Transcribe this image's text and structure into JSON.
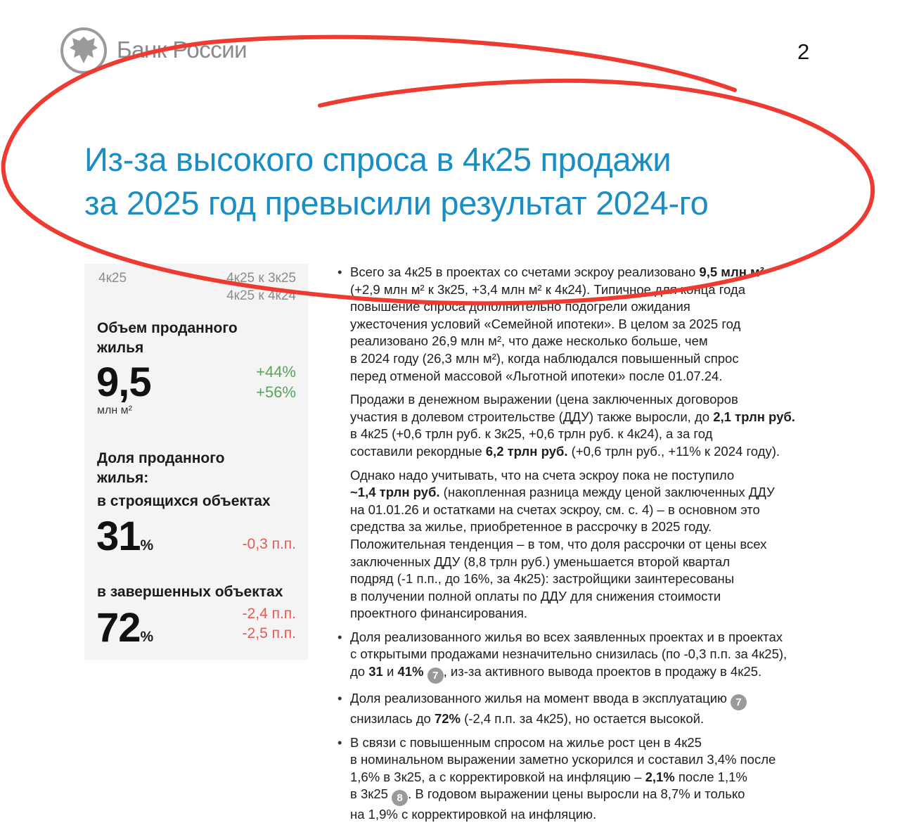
{
  "header": {
    "logo_text": "Банк России",
    "page_number": "2"
  },
  "title": [
    "Из-за высокого спроса в 4к25 продажи",
    "за 2025 год превысили результат 2024-го"
  ],
  "panel": {
    "col_current": "4к25",
    "col_qoq": "4к25 к 3к25",
    "col_yoy": "4к25 к 4к24",
    "volume": {
      "label1": "Объем проданного",
      "label2": "жилья",
      "value": "9,5",
      "unit": "млн м²",
      "qoq": "+44%",
      "yoy": "+56%"
    },
    "share_label1": "Доля проданного",
    "share_label2": "жилья:",
    "under_construction": {
      "label": "в строящихся объектах",
      "value": "31",
      "pct": "%",
      "qoq": "-0,3 п.п."
    },
    "completed": {
      "label": "в завершенных объектах",
      "value": "72",
      "pct": "%",
      "qoq": "-2,4 п.п.",
      "yoy": "-2,5 п.п."
    }
  },
  "colors": {
    "title": "#1a8ec2",
    "positive": "#58a45a",
    "negative": "#e45a52",
    "annotation": "#ee3b32"
  },
  "paragraphs": [
    {
      "bullet": true,
      "lines": [
        [
          {
            "t": "Всего за 4к25 в проектах со счетами эскроу реализовано "
          },
          {
            "t": "9,5 млн м²",
            "b": true
          }
        ],
        [
          {
            "t": "(+2,9 млн м² к 3к25, +3,4 млн м² к 4к24). Типичное для конца года"
          }
        ],
        [
          {
            "t": "повышение спроса дополнительно подогрели ожидания"
          }
        ],
        [
          {
            "t": "ужесточения условий «Семейной ипотеки». В целом за 2025 год"
          }
        ],
        [
          {
            "t": "реализовано 26,9 млн м², что даже несколько больше, чем"
          }
        ],
        [
          {
            "t": "в 2024 году (26,3 млн м²), когда наблюдался повышенный спрос"
          }
        ],
        [
          {
            "t": "перед отменой массовой «Льготной ипотеки» после 01.07.24."
          }
        ]
      ]
    },
    {
      "bullet": false,
      "lines": [
        [
          {
            "t": "Продажи в денежном выражении (цена заключенных договоров"
          }
        ],
        [
          {
            "t": "участия в долевом строительстве (ДДУ) также выросли, до "
          },
          {
            "t": "2,1 трлн руб.",
            "b": true
          }
        ],
        [
          {
            "t": "в 4к25 (+0,6 трлн руб. к 3к25, +0,6 трлн руб. к 4к24), а за год"
          }
        ],
        [
          {
            "t": "составили рекордные "
          },
          {
            "t": "6,2 трлн руб.",
            "b": true
          },
          {
            "t": " (+0,6 трлн руб., +11% к 2024 году)."
          }
        ]
      ]
    },
    {
      "bullet": false,
      "lines": [
        [
          {
            "t": "Однако надо учитывать, что на счета эскроу пока не поступило"
          }
        ],
        [
          {
            "t": "~1,4 трлн руб.",
            "b": true
          },
          {
            "t": " (накопленная разница между ценой заключенных ДДУ"
          }
        ],
        [
          {
            "t": "на 01.01.26 и остатками на счетах эскроу, см. с. 4) – в основном это"
          }
        ],
        [
          {
            "t": "средства за жилье, приобретенное в рассрочку в 2025 году."
          }
        ],
        [
          {
            "t": "Положительная тенденция – в том, что доля рассрочки от цены всех"
          }
        ],
        [
          {
            "t": "заключенных ДДУ (8,8 трлн руб.) уменьшается второй квартал"
          }
        ],
        [
          {
            "t": "подряд (-1 п.п., до 16%, за 4к25): застройщики заинтересованы"
          }
        ],
        [
          {
            "t": "в получении полной оплаты по ДДУ для снижения стоимости"
          }
        ],
        [
          {
            "t": "проектного финансирования."
          }
        ]
      ]
    },
    {
      "bullet": true,
      "lines": [
        [
          {
            "t": "Доля реализованного жилья во всех заявленных проектах и в проектах"
          }
        ],
        [
          {
            "t": "с открытыми продажами незначительно снизилась (по -0,3 п.п. за 4к25),"
          }
        ],
        [
          {
            "t": "до "
          },
          {
            "t": "31",
            "b": true
          },
          {
            "t": " и "
          },
          {
            "t": "41%",
            "b": true
          },
          {
            "t": " "
          },
          {
            "t": "7",
            "badge": true
          },
          {
            "t": ", из-за активного вывода проектов в продажу в 4к25."
          }
        ]
      ]
    },
    {
      "bullet": true,
      "lines": [
        [
          {
            "t": "Доля реализованного жилья на момент ввода в эксплуатацию "
          },
          {
            "t": "7",
            "badge": true
          }
        ],
        [
          {
            "t": "снизилась до "
          },
          {
            "t": "72%",
            "b": true
          },
          {
            "t": " (-2,4 п.п. за 4к25), но остается высокой."
          }
        ]
      ]
    },
    {
      "bullet": true,
      "lines": [
        [
          {
            "t": "В связи с повышенным спросом на жилье рост цен в 4к25"
          }
        ],
        [
          {
            "t": "в номинальном выражении заметно ускорился и составил 3,4% после"
          }
        ],
        [
          {
            "t": "1,6% в 3к25, а с корректировкой на инфляцию – "
          },
          {
            "t": "2,1%",
            "b": true
          },
          {
            "t": " после 1,1%"
          }
        ],
        [
          {
            "t": "в 3к25 "
          },
          {
            "t": "8",
            "badge": true
          },
          {
            "t": ". В годовом выражении цены выросли на 8,7% и только"
          }
        ],
        [
          {
            "t": "на 1,9% с корректировкой на инфляцию."
          }
        ]
      ]
    }
  ]
}
